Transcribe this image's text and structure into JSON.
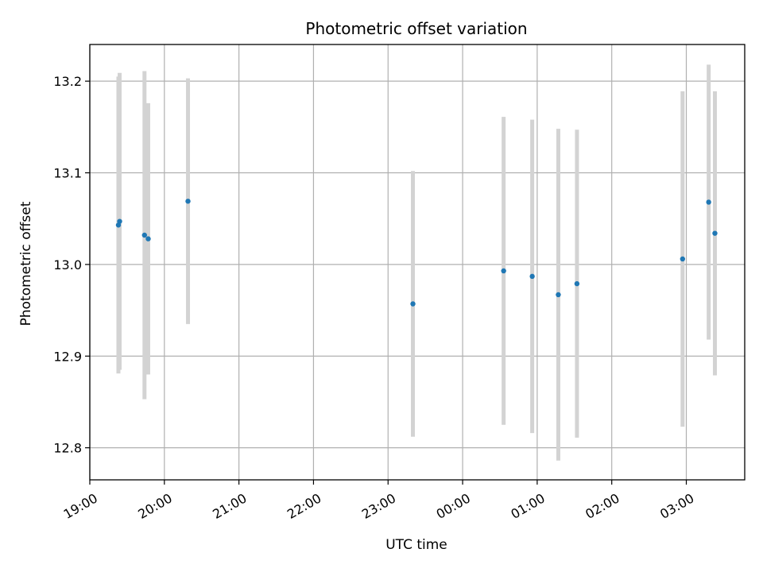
{
  "chart_data": {
    "type": "scatter",
    "title": "Photometric offset variation",
    "xlabel": "UTC time",
    "ylabel": "Photometric offset",
    "grid": true,
    "x_unit": "UTC hours (19:00 on first night through 03:45 next morning)",
    "xlim": [
      "19:00",
      "03:47"
    ],
    "ylim": [
      12.765,
      13.24
    ],
    "x_ticks": [
      "19:00",
      "20:00",
      "21:00",
      "22:00",
      "23:00",
      "00:00",
      "01:00",
      "02:00",
      "03:00"
    ],
    "y_ticks": [
      "12.8",
      "12.9",
      "13.0",
      "13.1",
      "13.2"
    ],
    "marker_color": "#1f77b4",
    "errorbar_color": "#d3d3d3",
    "points": [
      {
        "time": "19:23",
        "value": 13.043,
        "low": 12.881,
        "high": 13.205
      },
      {
        "time": "19:24",
        "value": 13.047,
        "low": 12.885,
        "high": 13.209
      },
      {
        "time": "19:44",
        "value": 13.032,
        "low": 12.853,
        "high": 13.211
      },
      {
        "time": "19:47",
        "value": 13.028,
        "low": 12.88,
        "high": 13.176
      },
      {
        "time": "20:19",
        "value": 13.069,
        "low": 12.935,
        "high": 13.203
      },
      {
        "time": "23:20",
        "value": 12.957,
        "low": 12.812,
        "high": 13.102
      },
      {
        "time": "00:33",
        "value": 12.993,
        "low": 12.825,
        "high": 13.161
      },
      {
        "time": "00:56",
        "value": 12.987,
        "low": 12.816,
        "high": 13.158
      },
      {
        "time": "01:17",
        "value": 12.967,
        "low": 12.786,
        "high": 13.148
      },
      {
        "time": "01:32",
        "value": 12.979,
        "low": 12.811,
        "high": 13.147
      },
      {
        "time": "02:57",
        "value": 13.006,
        "low": 12.823,
        "high": 13.189
      },
      {
        "time": "03:18",
        "value": 13.068,
        "low": 12.918,
        "high": 13.218
      },
      {
        "time": "03:23",
        "value": 13.034,
        "low": 12.879,
        "high": 13.189
      }
    ]
  }
}
